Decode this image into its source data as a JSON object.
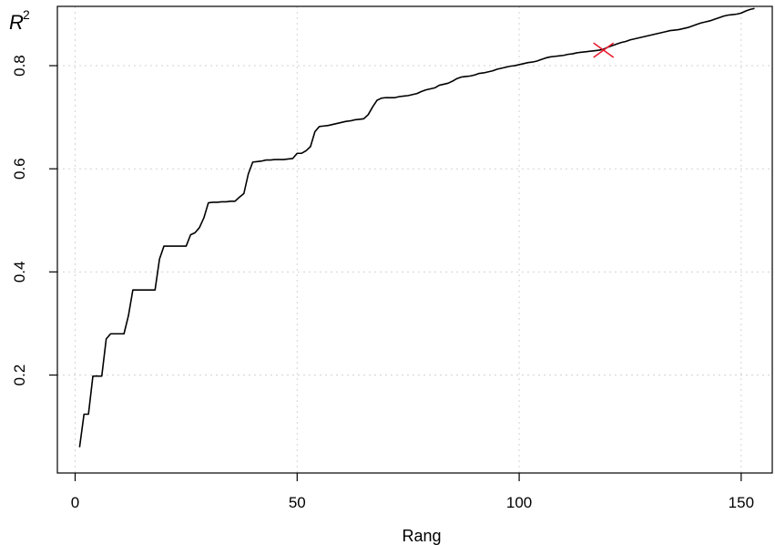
{
  "chart_data": {
    "type": "line",
    "title": "",
    "xlabel": "Rang",
    "ylabel": "R",
    "ylabel_superscript": "2",
    "xlim": [
      -4,
      157
    ],
    "ylim": [
      0.01,
      0.915
    ],
    "x_ticks": [
      0,
      50,
      100,
      150
    ],
    "x_tick_labels": [
      "0",
      "50",
      "100",
      "150"
    ],
    "y_ticks": [
      0.2,
      0.4,
      0.6,
      0.8
    ],
    "y_tick_labels": [
      "0.2",
      "0.4",
      "0.6",
      "0.8"
    ],
    "grid": true,
    "series": [
      {
        "color": "#000000",
        "x": [
          1,
          2,
          3,
          4,
          5,
          6,
          7,
          8,
          9,
          10,
          11,
          12,
          13,
          14,
          15,
          16,
          17,
          18,
          19,
          20,
          21,
          22,
          23,
          24,
          25,
          26,
          27,
          28,
          29,
          30,
          31,
          32,
          33,
          34,
          35,
          36,
          37,
          38,
          39,
          40,
          41,
          42,
          43,
          44,
          45,
          46,
          47,
          48,
          49,
          50,
          51,
          52,
          53,
          54,
          55,
          56,
          57,
          58,
          59,
          60,
          61,
          62,
          63,
          64,
          65,
          66,
          67,
          68,
          69,
          70,
          71,
          72,
          73,
          74,
          75,
          76,
          77,
          78,
          79,
          80,
          81,
          82,
          83,
          84,
          85,
          86,
          87,
          88,
          89,
          90,
          91,
          92,
          93,
          94,
          95,
          96,
          97,
          98,
          99,
          100,
          101,
          102,
          103,
          104,
          105,
          106,
          107,
          108,
          109,
          110,
          111,
          112,
          113,
          114,
          115,
          116,
          117,
          118,
          119,
          120,
          121,
          122,
          123,
          124,
          125,
          126,
          127,
          128,
          129,
          130,
          131,
          132,
          133,
          134,
          135,
          136,
          137,
          138,
          139,
          140,
          141,
          142,
          143,
          144,
          145,
          146,
          147,
          148,
          149,
          150,
          151,
          152,
          153
        ],
        "y": [
          0.06,
          0.124,
          0.124,
          0.198,
          0.198,
          0.198,
          0.27,
          0.28,
          0.28,
          0.28,
          0.28,
          0.315,
          0.365,
          0.365,
          0.365,
          0.365,
          0.365,
          0.365,
          0.425,
          0.45,
          0.45,
          0.45,
          0.45,
          0.45,
          0.45,
          0.472,
          0.476,
          0.486,
          0.505,
          0.534,
          0.535,
          0.535,
          0.536,
          0.536,
          0.537,
          0.537,
          0.545,
          0.552,
          0.59,
          0.613,
          0.614,
          0.615,
          0.617,
          0.617,
          0.618,
          0.618,
          0.618,
          0.619,
          0.62,
          0.63,
          0.63,
          0.635,
          0.643,
          0.672,
          0.682,
          0.683,
          0.684,
          0.686,
          0.688,
          0.69,
          0.692,
          0.693,
          0.695,
          0.696,
          0.697,
          0.705,
          0.72,
          0.733,
          0.737,
          0.738,
          0.738,
          0.738,
          0.74,
          0.741,
          0.742,
          0.744,
          0.746,
          0.75,
          0.753,
          0.755,
          0.757,
          0.762,
          0.764,
          0.766,
          0.77,
          0.775,
          0.778,
          0.779,
          0.78,
          0.782,
          0.785,
          0.786,
          0.788,
          0.79,
          0.793,
          0.795,
          0.797,
          0.799,
          0.8,
          0.802,
          0.804,
          0.806,
          0.807,
          0.809,
          0.812,
          0.815,
          0.817,
          0.818,
          0.819,
          0.82,
          0.822,
          0.823,
          0.825,
          0.826,
          0.827,
          0.828,
          0.829,
          0.83,
          0.832,
          0.836,
          0.839,
          0.842,
          0.845,
          0.847,
          0.85,
          0.852,
          0.854,
          0.856,
          0.858,
          0.86,
          0.862,
          0.864,
          0.866,
          0.868,
          0.869,
          0.87,
          0.872,
          0.874,
          0.877,
          0.88,
          0.883,
          0.885,
          0.887,
          0.89,
          0.893,
          0.896,
          0.898,
          0.899,
          0.9,
          0.902,
          0.906,
          0.909,
          0.911
        ]
      }
    ],
    "marker": {
      "x": 119,
      "y": 0.83,
      "symbol": "x",
      "color": "#e8182b"
    }
  }
}
